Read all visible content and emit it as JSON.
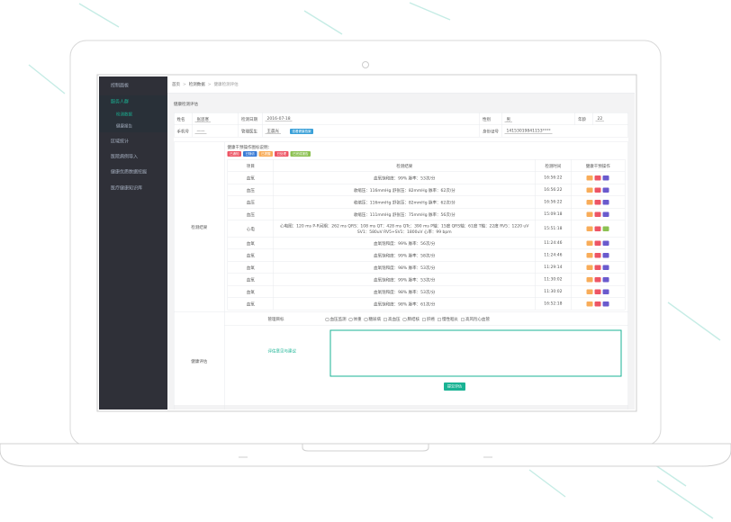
{
  "sidebar": {
    "items": [
      "控制面板",
      "服务人群",
      "区域统计",
      "医院病例导入",
      "健康优质数据挖掘",
      "医疗健康知识库"
    ],
    "sub_items": [
      "检测数据",
      "健康报告"
    ]
  },
  "breadcrumb": [
    "首页",
    "检测数据",
    "健康检测评估"
  ],
  "section_title": "健康检测评估",
  "profile": {
    "name_label": "姓名",
    "name": "张思寒",
    "date_label": "检测日期",
    "date": "2016-07-18",
    "sex_label": "性别",
    "sex": "男",
    "age_label": "年龄",
    "age": "22",
    "phone_label": "手机号",
    "phone": "——",
    "doctor_label": "管理医生",
    "doctor": "王晨光",
    "record_button": "查看健康档案",
    "id_label": "身份证号",
    "id": "14153019841153****"
  },
  "results": {
    "label": "检测结果",
    "legend_title": "健康干预操作图标说明：",
    "legend": [
      "已通知",
      "已随访",
      "已提醒",
      "已处理",
      "已完成报告"
    ],
    "headers": [
      "项目",
      "检测结果",
      "检测时间",
      "健康干预操作"
    ],
    "rows": [
      [
        "血氧",
        "血氧饱和度：99% 脉率：53次/分",
        "16:56:22"
      ],
      [
        "血压",
        "收缩压：116mmHg 舒张压：82mmHg 脉率：62次/分",
        "16:56:22"
      ],
      [
        "血压",
        "收缩压：116mmHg 舒张压：82mmHg 脉率：62次/分",
        "16:56:22"
      ],
      [
        "血压",
        "收缩压：111mmHg 舒张压：75mmHg 脉率：56次/分",
        "15:09:18"
      ],
      [
        "心电",
        "心电图：120 ms P-R间期：262 ms QRS：108 ms QT：428 ms QTc：390 ms P轴：15度 QRS轴：61度 T轴：22度 RV5：1220 uV SV1：580uV RV5+SV1：1800uV 心率：99 bpm",
        "15:51:18"
      ],
      [
        "血氧",
        "血氧饱和度：99% 脉率：56次/分",
        "11:24:46"
      ],
      [
        "血氧",
        "血氧饱和度：99% 脉率：58次/分",
        "11:24:46"
      ],
      [
        "血氧",
        "血氧饱和度：98% 脉率：53次/分",
        "11:29:14"
      ],
      [
        "血氧",
        "血氧饱和度：99% 脉率：53次/分",
        "11:30:02"
      ],
      [
        "血氧",
        "血氧饱和度：98% 脉率：53次/分",
        "11:30:02"
      ],
      [
        "血氧",
        "血氧饱和度：98% 脉率：61次/分",
        "16:52:18"
      ]
    ]
  },
  "assessment": {
    "label": "健康评估",
    "goal_label": "管理目标",
    "goals": [
      "血压监测",
      "体重",
      "糖尿病",
      "高血压",
      "肺结核",
      "肝癌",
      "慢性咽炎",
      "高风险心血管"
    ],
    "advice_label": "评估意见与建议",
    "submit": "提交评估"
  }
}
